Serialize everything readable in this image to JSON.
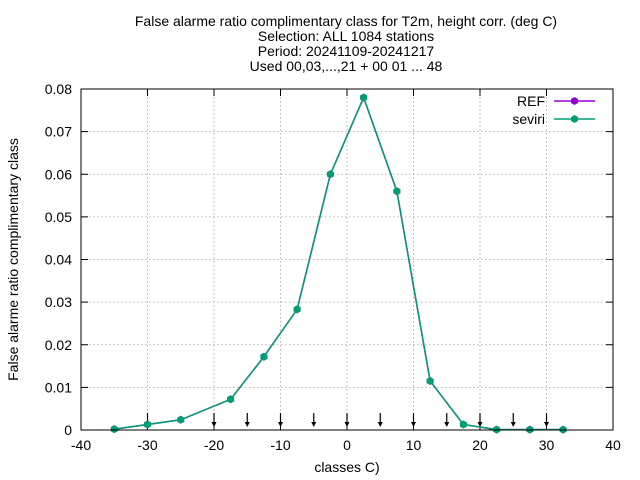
{
  "chart_data": {
    "type": "line",
    "title_lines": [
      "False alarme ratio complimentary class  for T2m, height corr. (deg C)",
      "Selection: ALL   1084 stations",
      "Period: 20241109-20241217",
      "Used 00,03,...,21 + 00 01 ... 48"
    ],
    "xlabel": "classes C)",
    "ylabel": "False alarme ratio complimentary class",
    "xlim": [
      -40,
      40
    ],
    "ylim": [
      0,
      0.08
    ],
    "xticks": [
      -40,
      -30,
      -20,
      -10,
      0,
      10,
      20,
      30,
      40
    ],
    "yticks": [
      0,
      0.01,
      0.02,
      0.03,
      0.04,
      0.05,
      0.06,
      0.07,
      0.08
    ],
    "xtick_labels": [
      "-40",
      "-30",
      "-20",
      "-10",
      "0",
      "10",
      "20",
      "30",
      "40"
    ],
    "ytick_labels": [
      "0",
      "0.01",
      "0.02",
      "0.03",
      "0.04",
      "0.05",
      "0.06",
      "0.07",
      "0.08"
    ],
    "grid": true,
    "legend_position": "top-right",
    "class_boundaries": [
      -30,
      -20,
      -15,
      -10,
      -5,
      0,
      5,
      10,
      15,
      20,
      25,
      30
    ],
    "x": [
      -35,
      -30,
      -25,
      -17.5,
      -12.5,
      -7.5,
      -2.5,
      2.5,
      7.5,
      12.5,
      17.5,
      22.5,
      27.5,
      32.5
    ],
    "series": [
      {
        "name": "REF",
        "color": "#9400d3",
        "values": [
          0.0002,
          0.0013,
          0.0024,
          0.0072,
          0.0172,
          0.0283,
          0.06,
          0.078,
          0.056,
          0.0115,
          0.0013,
          0.0001,
          0.0001,
          0.0001
        ]
      },
      {
        "name": "seviri",
        "color": "#009e73",
        "values": [
          0.0002,
          0.0013,
          0.0024,
          0.0072,
          0.0172,
          0.0283,
          0.06,
          0.078,
          0.056,
          0.0115,
          0.0013,
          0.0001,
          0.0001,
          0.0001
        ]
      }
    ]
  }
}
